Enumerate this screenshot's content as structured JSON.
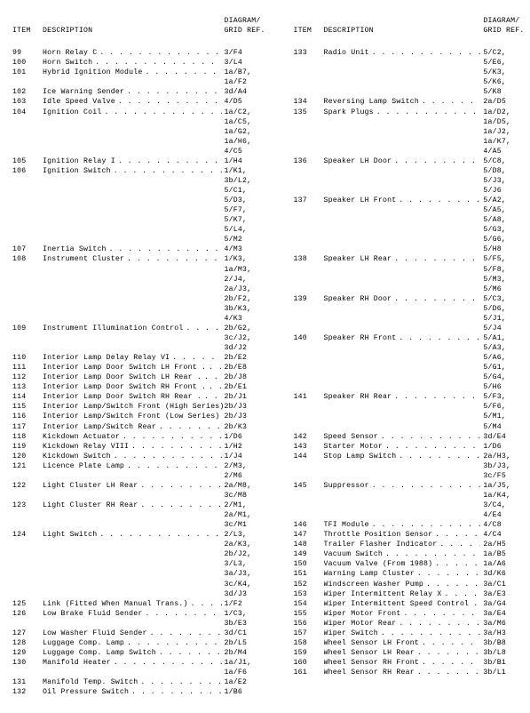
{
  "headers": {
    "item": "ITEM",
    "description": "DESCRIPTION",
    "ref_line1": "DIAGRAM/",
    "ref_line2": "GRID REF."
  },
  "left": [
    {
      "item": "99",
      "desc": "Horn Relay C",
      "refs": [
        "3/F4"
      ]
    },
    {
      "item": "100",
      "desc": "Horn Switch",
      "refs": [
        "3/L4"
      ]
    },
    {
      "item": "101",
      "desc": "Hybrid Ignition Module",
      "refs": [
        "1a/B7,",
        "1a/F2"
      ]
    },
    {
      "item": "102",
      "desc": "Ice Warning Sender",
      "refs": [
        "3d/A4"
      ]
    },
    {
      "item": "103",
      "desc": "Idle Speed Valve",
      "refs": [
        "4/D5"
      ]
    },
    {
      "item": "104",
      "desc": "Ignition Coil",
      "refs": [
        "1a/C2,",
        "1a/C5,",
        "1a/G2,",
        "1a/H6,",
        "4/C5"
      ]
    },
    {
      "item": "105",
      "desc": "Ignition Relay I",
      "refs": [
        "1/H4"
      ]
    },
    {
      "item": "106",
      "desc": "Ignition Switch",
      "refs": [
        "1/K1,",
        "3b/L2,",
        "5/C1,",
        "5/D3,",
        "5/F7,",
        "5/K7,",
        "5/L4,",
        "5/M2"
      ]
    },
    {
      "item": "107",
      "desc": "Inertia Switch",
      "refs": [
        "4/M3"
      ]
    },
    {
      "item": "108",
      "desc": "Instrument Cluster",
      "refs": [
        "1/K3,",
        "1a/M3,",
        "2/J4,",
        "2a/J3,",
        "2b/F2,",
        "3b/K3,",
        "4/K3"
      ]
    },
    {
      "item": "109",
      "desc": "Instrument Illumination Control",
      "refs": [
        "2b/G2,",
        "3c/J2,",
        "3d/J2"
      ]
    },
    {
      "item": "110",
      "desc": "Interior Lamp Delay Relay VI",
      "refs": [
        "2b/E2"
      ]
    },
    {
      "item": "111",
      "desc": "Interior Lamp Door Switch LH Front .",
      "refs": [
        "2b/E8"
      ]
    },
    {
      "item": "112",
      "desc": "Interior Lamp Door Switch LH Rear .",
      "refs": [
        "2b/J8"
      ]
    },
    {
      "item": "113",
      "desc": "Interior Lamp Door Switch RH Front .",
      "refs": [
        "2b/E1"
      ]
    },
    {
      "item": "114",
      "desc": "Interior Lamp Door Switch RH Rear .",
      "refs": [
        "2b/J1"
      ]
    },
    {
      "item": "115",
      "desc": "Interior Lamp/Switch Front (High Series)",
      "refs": [
        "2b/J3"
      ],
      "noLeader": true
    },
    {
      "item": "116",
      "desc": "Interior Lamp/Switch Front (Low Series)",
      "refs": [
        "2b/J3"
      ],
      "noLeader": true
    },
    {
      "item": "117",
      "desc": "Interior Lamp/Switch Rear",
      "refs": [
        "2b/K3"
      ]
    },
    {
      "item": "118",
      "desc": "Kickdown Actuator",
      "refs": [
        "1/D6"
      ]
    },
    {
      "item": "119",
      "desc": "Kickdown Relay VIII",
      "refs": [
        "1/H2"
      ]
    },
    {
      "item": "120",
      "desc": "Kickdown Switch",
      "refs": [
        "1/J4"
      ]
    },
    {
      "item": "121",
      "desc": "Licence Plate Lamp",
      "refs": [
        "2/M3,",
        "2/M6"
      ]
    },
    {
      "item": "122",
      "desc": "Light Cluster LH Rear",
      "refs": [
        "2a/M8,",
        "3c/M8"
      ]
    },
    {
      "item": "123",
      "desc": "Light Cluster RH Rear",
      "refs": [
        "2/M1,",
        "2a/M1,",
        "3c/M1"
      ]
    },
    {
      "item": "124",
      "desc": "Light Switch",
      "refs": [
        "2/L3,",
        "2a/K3,",
        "2b/J2,",
        "3/L3,",
        "3a/J3,",
        "3c/K4,",
        "3d/J3"
      ]
    },
    {
      "item": "125",
      "desc": "Link (Fitted When Manual Trans.)",
      "refs": [
        "1/F2"
      ]
    },
    {
      "item": "126",
      "desc": "Low Brake Fluid Sender",
      "refs": [
        "1/C3,",
        "3b/E3"
      ]
    },
    {
      "item": "127",
      "desc": "Low Washer Fluid Sender",
      "refs": [
        "3d/C1"
      ]
    },
    {
      "item": "128",
      "desc": "Luggage Comp. Lamp",
      "refs": [
        "2b/L5"
      ]
    },
    {
      "item": "129",
      "desc": "Luggage Comp. Lamp Switch",
      "refs": [
        "2b/M4"
      ]
    },
    {
      "item": "130",
      "desc": "Manifold Heater",
      "refs": [
        "1a/J1,",
        "1a/F6"
      ]
    },
    {
      "item": "131",
      "desc": "Manifold Temp. Switch",
      "refs": [
        "1a/E2"
      ]
    },
    {
      "item": "132",
      "desc": "Oil Pressure Switch",
      "refs": [
        "1/B6"
      ]
    }
  ],
  "right": [
    {
      "item": "133",
      "desc": "Radio Unit",
      "refs": [
        "5/C2,",
        "5/E6,",
        "5/K3,",
        "5/K6,",
        "5/K8"
      ]
    },
    {
      "item": "134",
      "desc": "Reversing Lamp Switch",
      "refs": [
        "2a/D5"
      ]
    },
    {
      "item": "135",
      "desc": "Spark Plugs",
      "refs": [
        "1a/D2,",
        "1a/D5,",
        "1a/J2,",
        "1a/K7,",
        "4/A5"
      ]
    },
    {
      "item": "136",
      "desc": "Speaker LH Door",
      "refs": [
        "5/C8,",
        "5/D8,",
        "5/J3,",
        "5/J6"
      ]
    },
    {
      "item": "137",
      "desc": "Speaker LH Front",
      "refs": [
        "5/A2,",
        "5/A5,",
        "5/A8,",
        "5/G3,",
        "5/G6,",
        "5/H8"
      ]
    },
    {
      "item": "138",
      "desc": "Speaker LH Rear",
      "refs": [
        "5/F5,",
        "5/F8,",
        "5/M3,",
        "5/M6"
      ]
    },
    {
      "item": "139",
      "desc": "Speaker RH Door",
      "refs": [
        "5/C3,",
        "5/D6,",
        "5/J1,",
        "5/J4"
      ]
    },
    {
      "item": "140",
      "desc": "Speaker RH Front",
      "refs": [
        "5/A1,",
        "5/A3,",
        "5/A6,",
        "5/G1,",
        "5/G4,",
        "5/H6"
      ]
    },
    {
      "item": "141",
      "desc": "Speaker RH Rear",
      "refs": [
        "5/F3,",
        "5/F6,",
        "5/M1,",
        "5/M4"
      ]
    },
    {
      "item": "142",
      "desc": "Speed Sensor",
      "refs": [
        "3d/E4"
      ]
    },
    {
      "item": "143",
      "desc": "Starter Motor",
      "refs": [
        "1/D6"
      ]
    },
    {
      "item": "144",
      "desc": "Stop Lamp Switch",
      "refs": [
        "2a/H3,",
        "3b/J3,",
        "3c/F5"
      ]
    },
    {
      "item": "145",
      "desc": "Suppressor",
      "refs": [
        "1a/J5,",
        "1a/K4,",
        "3/C4,",
        "4/E4"
      ]
    },
    {
      "item": "146",
      "desc": "TFI Module",
      "refs": [
        "4/C8"
      ]
    },
    {
      "item": "147",
      "desc": "Throttle Position Sensor",
      "refs": [
        "4/C4"
      ]
    },
    {
      "item": "148",
      "desc": "Trailer Flasher Indicator",
      "refs": [
        "2a/H5"
      ]
    },
    {
      "item": "149",
      "desc": "Vacuum Switch",
      "refs": [
        "1a/B5"
      ]
    },
    {
      "item": "150",
      "desc": "Vacuum Valve (From 1988)",
      "refs": [
        "1a/A6"
      ]
    },
    {
      "item": "151",
      "desc": "Warning Lamp Cluster",
      "refs": [
        "3d/K6"
      ]
    },
    {
      "item": "152",
      "desc": "Windscreen Washer Pump",
      "refs": [
        "3a/C1"
      ]
    },
    {
      "item": "153",
      "desc": "Wiper Intermittent Relay X",
      "refs": [
        "3a/E3"
      ]
    },
    {
      "item": "154",
      "desc": "Wiper Intermittent Speed Control .",
      "refs": [
        "3a/G4"
      ]
    },
    {
      "item": "155",
      "desc": "Wiper Motor Front",
      "refs": [
        "3a/E4"
      ]
    },
    {
      "item": "156",
      "desc": "Wiper Motor Rear",
      "refs": [
        "3a/M6"
      ]
    },
    {
      "item": "157",
      "desc": "Wiper Switch",
      "refs": [
        "3a/H3"
      ]
    },
    {
      "item": "158",
      "desc": "Wheel Sensor LH Front",
      "refs": [
        "3b/B8"
      ]
    },
    {
      "item": "159",
      "desc": "Wheel Sensor LH Rear",
      "refs": [
        "3b/L8"
      ]
    },
    {
      "item": "160",
      "desc": "Wheel Sensor RH Front",
      "refs": [
        "3b/B1"
      ]
    },
    {
      "item": "161",
      "desc": "Wheel Sensor RH Rear",
      "refs": [
        "3b/L1"
      ]
    }
  ]
}
